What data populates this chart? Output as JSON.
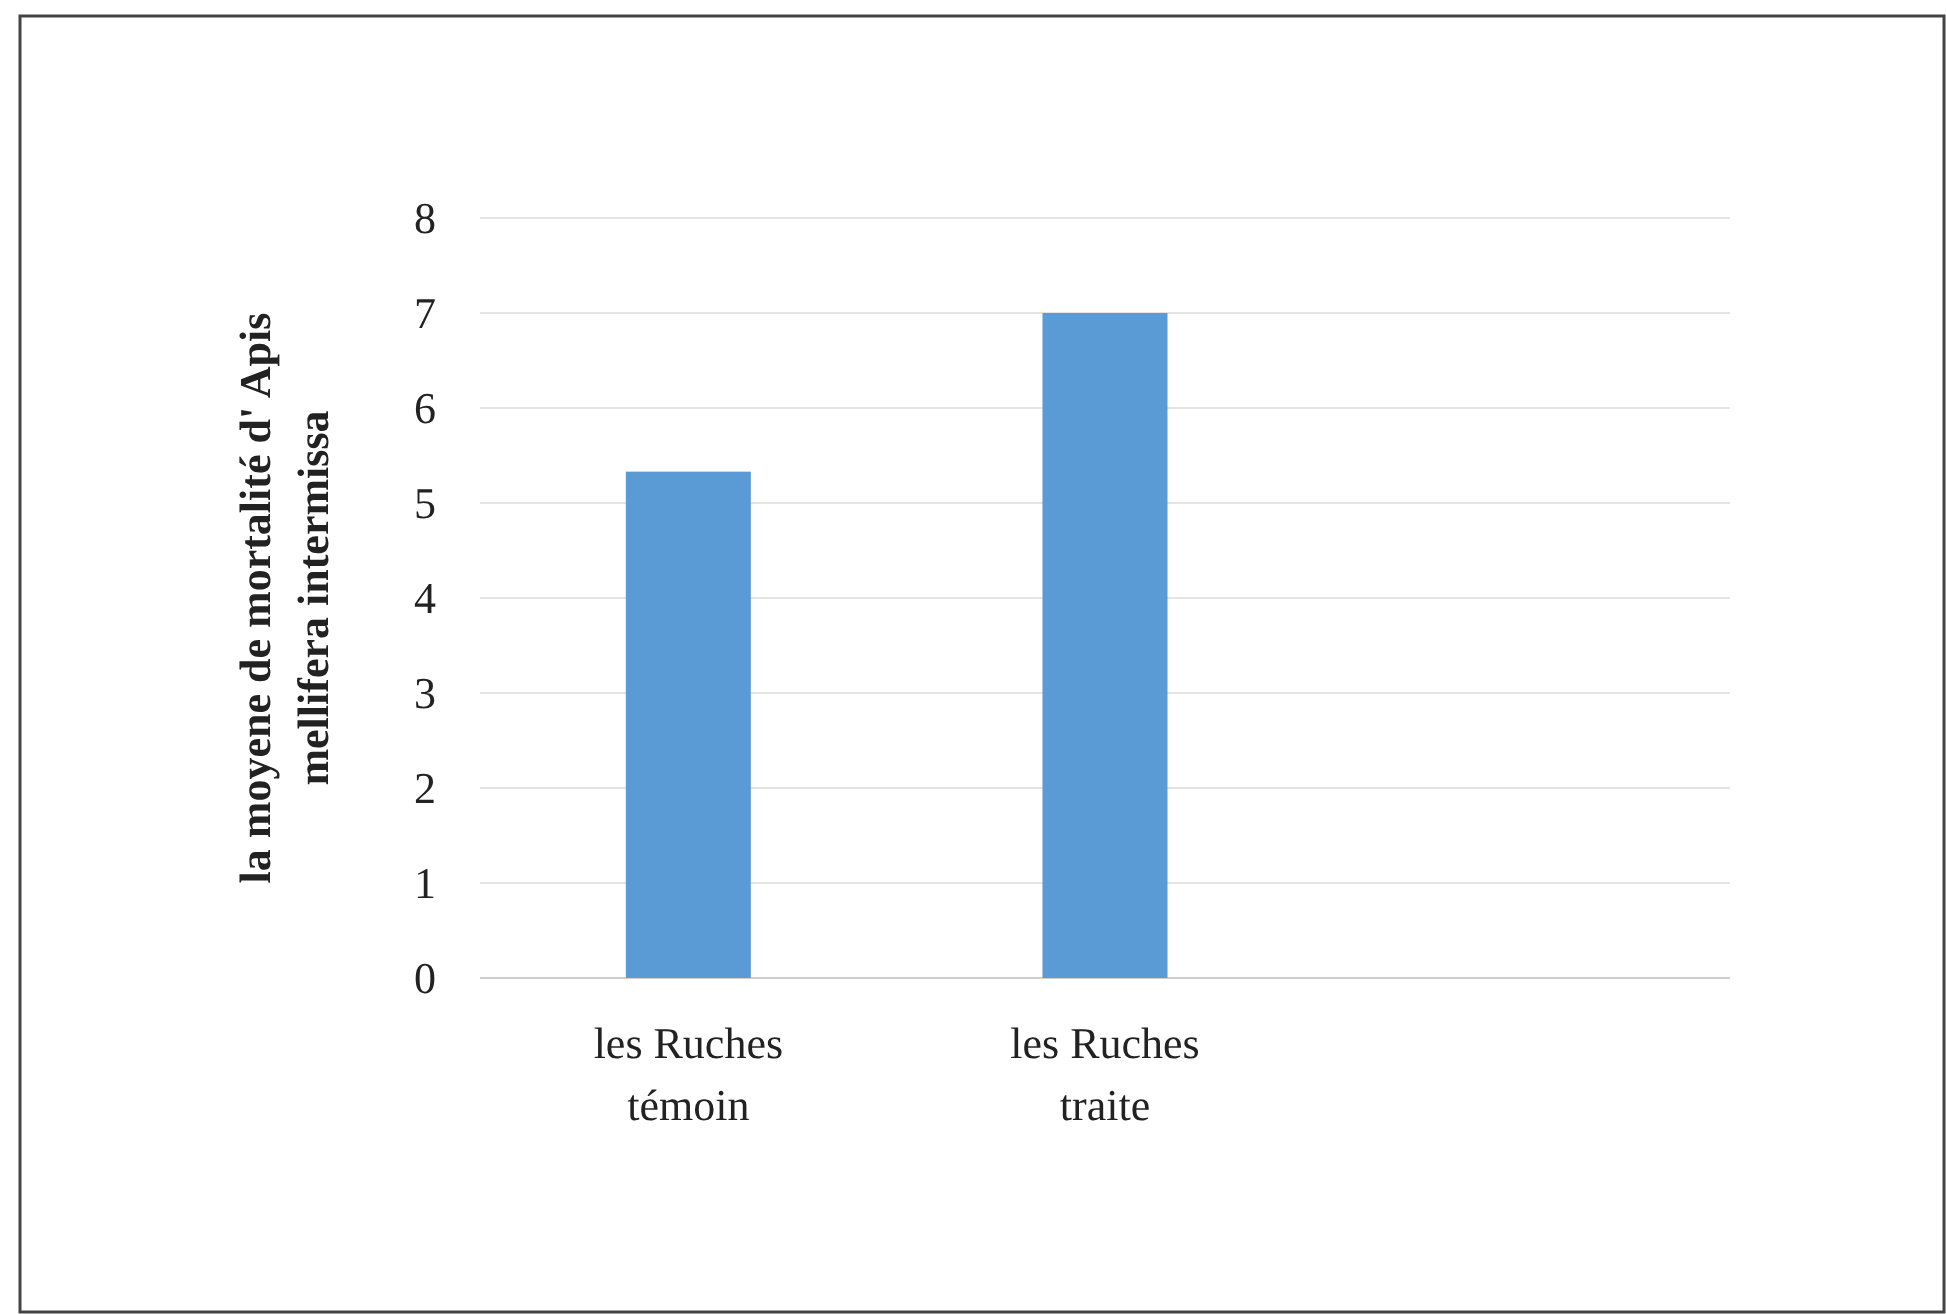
{
  "chart_data": {
    "type": "bar",
    "ylabel": "la moyene de mortalité  d' Apis mellifera intermissa",
    "categories": [
      "les Ruches témoin",
      "les Ruches traite",
      null
    ],
    "values": [
      5.33,
      7,
      null
    ],
    "color": "#5b9bd5",
    "ylim": [
      0,
      8
    ],
    "yticks": [
      0,
      1,
      2,
      3,
      4,
      5,
      6,
      7,
      8
    ],
    "grid": "y"
  }
}
